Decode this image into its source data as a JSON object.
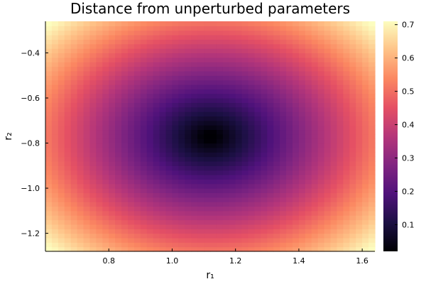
{
  "chart_data": {
    "type": "heatmap",
    "title": "Distance from unperturbed parameters",
    "xlabel": "r₁",
    "ylabel": "r₂",
    "xlim": [
      0.6,
      1.64
    ],
    "ylim": [
      -1.28,
      -0.26
    ],
    "x_ticks": [
      0.8,
      1.0,
      1.2,
      1.4,
      1.6
    ],
    "x_tick_labels": [
      "0.8",
      "1.0",
      "1.2",
      "1.4",
      "1.6"
    ],
    "y_ticks": [
      -0.4,
      -0.6,
      -0.8,
      -1.0,
      -1.2
    ],
    "y_tick_labels": [
      "−0.4",
      "−0.6",
      "−0.8",
      "−1.0",
      "−1.2"
    ],
    "grid_columns": 52,
    "grid_rows": 51,
    "center": [
      1.12,
      -0.77
    ],
    "value_formula": "sqrt((r1 - 1.12)^2 + (r2 + 0.77)^2)",
    "colorbar": {
      "colormap": "magma",
      "range": [
        0.02,
        0.71
      ],
      "ticks": [
        0.1,
        0.2,
        0.3,
        0.4,
        0.5,
        0.6,
        0.7
      ],
      "tick_labels": [
        "0.1",
        "0.2",
        "0.3",
        "0.4",
        "0.5",
        "0.6",
        "0.7"
      ]
    },
    "grid": false,
    "legend": "none"
  }
}
